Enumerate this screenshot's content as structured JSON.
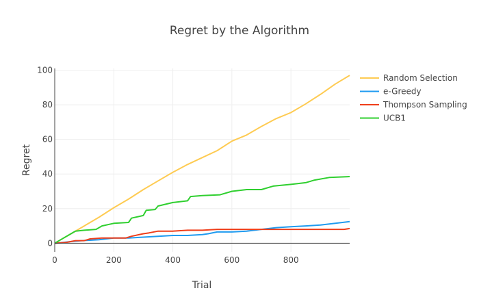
{
  "chart_data": {
    "type": "line",
    "title": "Regret by the Algorithm",
    "xlabel": "Trial",
    "ylabel": "Regret",
    "xlim": [
      0,
      999
    ],
    "ylim": [
      -5,
      101
    ],
    "x_ticks": [
      0,
      200,
      400,
      600,
      800
    ],
    "y_ticks": [
      0,
      20,
      40,
      60,
      80,
      100
    ],
    "grid": true,
    "legend_position": "top-right",
    "series": [
      {
        "name": "Random Selection",
        "color": "#fecb52",
        "points": [
          [
            0,
            0
          ],
          [
            20,
            2
          ],
          [
            50,
            5
          ],
          [
            100,
            10
          ],
          [
            150,
            15
          ],
          [
            200,
            20.5
          ],
          [
            250,
            25.5
          ],
          [
            300,
            31
          ],
          [
            350,
            36
          ],
          [
            400,
            41
          ],
          [
            450,
            45.5
          ],
          [
            500,
            49.5
          ],
          [
            550,
            53.5
          ],
          [
            600,
            59
          ],
          [
            650,
            62.5
          ],
          [
            700,
            67.5
          ],
          [
            750,
            72
          ],
          [
            800,
            75.5
          ],
          [
            850,
            80.5
          ],
          [
            900,
            86
          ],
          [
            950,
            92
          ],
          [
            999,
            97
          ]
        ]
      },
      {
        "name": "e-Greedy",
        "color": "#1f9bf0",
        "points": [
          [
            0,
            0
          ],
          [
            30,
            0.5
          ],
          [
            60,
            1
          ],
          [
            90,
            1.5
          ],
          [
            150,
            2
          ],
          [
            200,
            3
          ],
          [
            250,
            3
          ],
          [
            300,
            3.5
          ],
          [
            350,
            4
          ],
          [
            400,
            4.5
          ],
          [
            450,
            4.5
          ],
          [
            500,
            5
          ],
          [
            520,
            5.5
          ],
          [
            550,
            6.5
          ],
          [
            600,
            6.5
          ],
          [
            650,
            7
          ],
          [
            700,
            8
          ],
          [
            750,
            9
          ],
          [
            800,
            9.5
          ],
          [
            850,
            10
          ],
          [
            900,
            10.5
          ],
          [
            950,
            11.5
          ],
          [
            999,
            12.5
          ]
        ]
      },
      {
        "name": "Thompson Sampling",
        "color": "#ef3e1a",
        "points": [
          [
            0,
            0
          ],
          [
            40,
            0.5
          ],
          [
            70,
            1.5
          ],
          [
            100,
            1.5
          ],
          [
            120,
            2.5
          ],
          [
            160,
            3
          ],
          [
            240,
            3
          ],
          [
            260,
            4
          ],
          [
            300,
            5.5
          ],
          [
            320,
            6
          ],
          [
            350,
            7
          ],
          [
            400,
            7
          ],
          [
            450,
            7.5
          ],
          [
            500,
            7.5
          ],
          [
            550,
            8
          ],
          [
            700,
            8
          ],
          [
            980,
            8
          ],
          [
            999,
            8.5
          ]
        ]
      },
      {
        "name": "UCB1",
        "color": "#2fcf2f",
        "points": [
          [
            0,
            0
          ],
          [
            20,
            2
          ],
          [
            50,
            5
          ],
          [
            70,
            7
          ],
          [
            100,
            7.5
          ],
          [
            140,
            8
          ],
          [
            160,
            10
          ],
          [
            200,
            11.5
          ],
          [
            250,
            12
          ],
          [
            260,
            14.5
          ],
          [
            300,
            16
          ],
          [
            310,
            19
          ],
          [
            340,
            19.5
          ],
          [
            350,
            21.5
          ],
          [
            400,
            23.5
          ],
          [
            450,
            24.5
          ],
          [
            460,
            27
          ],
          [
            500,
            27.5
          ],
          [
            560,
            28
          ],
          [
            600,
            30
          ],
          [
            650,
            31
          ],
          [
            700,
            31
          ],
          [
            740,
            33
          ],
          [
            800,
            34
          ],
          [
            850,
            35
          ],
          [
            880,
            36.5
          ],
          [
            930,
            38
          ],
          [
            999,
            38.5
          ]
        ]
      }
    ]
  }
}
